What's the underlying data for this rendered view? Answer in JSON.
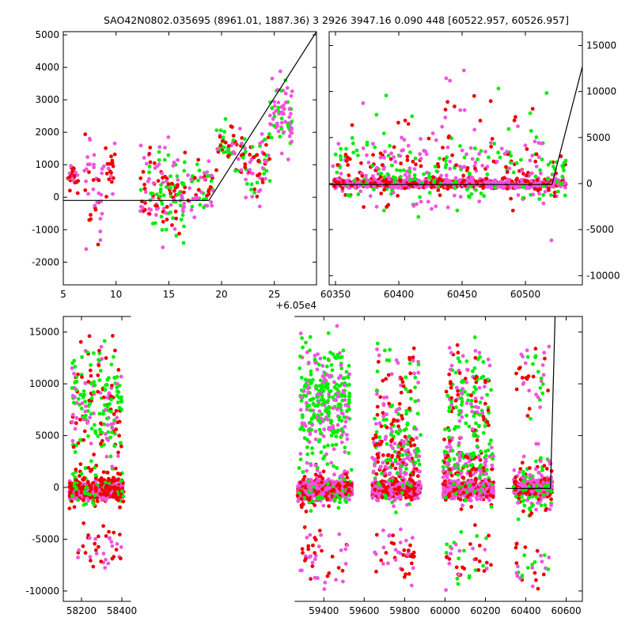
{
  "title": "SAO42N0802.035695 (8961.01, 1887.36)   3 2926 3947.16 0.090 448 [60522.957, 60526.957]",
  "colors": {
    "green": "#00ee00",
    "red": "#ee0000",
    "violet": "#ee55dd",
    "model": "#000000"
  },
  "chart_data": [
    {
      "type": "scatter",
      "panel": "top-left",
      "offset_label": "+6.05e4",
      "xlim": [
        5,
        29
      ],
      "ylim": [
        -2700,
        5100
      ],
      "xticks": [
        5,
        10,
        15,
        20,
        25
      ],
      "yticks": [
        -2000,
        -1000,
        0,
        1000,
        2000,
        3000,
        4000,
        5000
      ],
      "y_axis_side": "left",
      "model_line": {
        "x": [
          5,
          18.8,
          29
        ],
        "y": [
          -100,
          -100,
          5100
        ]
      },
      "groups": [
        {
          "xr": [
            5.3,
            6.6
          ],
          "yr": [
            -200,
            1300
          ],
          "n": 24,
          "colors": [
            "red",
            "red",
            "violet"
          ]
        },
        {
          "xr": [
            7.0,
            8.7
          ],
          "yr": [
            -2200,
            2600
          ],
          "n": 40,
          "colors": [
            "red",
            "violet",
            "violet"
          ]
        },
        {
          "xr": [
            8.8,
            9.9
          ],
          "yr": [
            -300,
            2200
          ],
          "n": 22,
          "colors": [
            "red",
            "violet"
          ]
        },
        {
          "xr": [
            12.3,
            14.3
          ],
          "yr": [
            -1800,
            2300
          ],
          "n": 60,
          "colors": [
            "green",
            "violet",
            "red"
          ]
        },
        {
          "xr": [
            14.3,
            16.6
          ],
          "yr": [
            -1900,
            2100
          ],
          "n": 85,
          "colors": [
            "green",
            "violet",
            "red"
          ]
        },
        {
          "xr": [
            16.8,
            19.2
          ],
          "yr": [
            -1000,
            1700
          ],
          "n": 55,
          "colors": [
            "red",
            "violet",
            "green"
          ]
        },
        {
          "xr": [
            19.5,
            22.0
          ],
          "yr": [
            500,
            2600
          ],
          "n": 55,
          "colors": [
            "red",
            "violet",
            "green"
          ]
        },
        {
          "xr": [
            22.0,
            24.6
          ],
          "yr": [
            -600,
            2600
          ],
          "n": 70,
          "colors": [
            "green",
            "violet",
            "red"
          ]
        },
        {
          "xr": [
            24.6,
            26.7
          ],
          "yr": [
            900,
            4100
          ],
          "n": 75,
          "colors": [
            "green",
            "violet",
            "violet"
          ]
        }
      ]
    },
    {
      "type": "scatter",
      "panel": "top-right",
      "xlim": [
        60345,
        60545
      ],
      "ylim": [
        -11000,
        16500
      ],
      "xticks": [
        60350,
        60400,
        60450,
        60500
      ],
      "yticks": [
        -10000,
        -5000,
        0,
        5000,
        10000,
        15000
      ],
      "y_axis_side": "right",
      "model_line": {
        "x": [
          60345,
          60521,
          60545
        ],
        "y": [
          -100,
          -100,
          12700
        ]
      },
      "groups": [
        {
          "xr": [
            60348,
            60532
          ],
          "yr": [
            -700,
            700
          ],
          "n": 900,
          "colors": [
            "violet",
            "violet",
            "red"
          ]
        },
        {
          "xr": [
            60348,
            60532
          ],
          "yr": [
            -4000,
            6000
          ],
          "n": 320,
          "colors": [
            "violet",
            "green",
            "red"
          ]
        },
        {
          "xr": [
            60360,
            60525
          ],
          "yr": [
            -10000,
            16000
          ],
          "n": 110,
          "colors": [
            "green",
            "violet",
            "red"
          ]
        }
      ]
    },
    {
      "type": "scatter",
      "panel": "bottom",
      "xlim": [
        58110,
        60680
      ],
      "ylim": [
        -11000,
        16500
      ],
      "xticks": [
        58200,
        58400,
        59400,
        59600,
        59800,
        60000,
        60200,
        60400,
        60600
      ],
      "yticks": [
        -10000,
        -5000,
        0,
        5000,
        10000,
        15000
      ],
      "y_axis_side": "left",
      "gap_break": [
        58445,
        59255
      ],
      "model_line": {
        "x": [
          60300,
          60522,
          60545
        ],
        "y": [
          -100,
          -100,
          16500
        ]
      },
      "groups": [
        {
          "xr": [
            58140,
            58410
          ],
          "yr": [
            -1500,
            1000
          ],
          "n": 500,
          "colors": [
            "violet",
            "violet",
            "red"
          ]
        },
        {
          "xr": [
            58140,
            58410
          ],
          "yr": [
            -3000,
            3000
          ],
          "n": 160,
          "colors": [
            "red",
            "red",
            "green"
          ]
        },
        {
          "xr": [
            58150,
            58400
          ],
          "yr": [
            0,
            16000
          ],
          "n": 220,
          "colors": [
            "green",
            "green",
            "violet",
            "red"
          ]
        },
        {
          "xr": [
            58150,
            58400
          ],
          "yr": [
            -9000,
            -2500
          ],
          "n": 40,
          "colors": [
            "red",
            "violet"
          ]
        },
        {
          "xr": [
            59270,
            59540
          ],
          "yr": [
            -1500,
            1000
          ],
          "n": 550,
          "colors": [
            "violet",
            "violet",
            "red"
          ]
        },
        {
          "xr": [
            59270,
            59540
          ],
          "yr": [
            -3000,
            3000
          ],
          "n": 150,
          "colors": [
            "red",
            "violet",
            "green"
          ]
        },
        {
          "xr": [
            59280,
            59530
          ],
          "yr": [
            0,
            16500
          ],
          "n": 330,
          "colors": [
            "green",
            "green",
            "violet"
          ]
        },
        {
          "xr": [
            59280,
            59530
          ],
          "yr": [
            -10500,
            -2500
          ],
          "n": 45,
          "colors": [
            "red",
            "violet"
          ]
        },
        {
          "xr": [
            59640,
            59880
          ],
          "yr": [
            -1500,
            1000
          ],
          "n": 480,
          "colors": [
            "violet",
            "violet",
            "red"
          ]
        },
        {
          "xr": [
            59640,
            59880
          ],
          "yr": [
            -3500,
            8000
          ],
          "n": 220,
          "colors": [
            "violet",
            "red",
            "green"
          ]
        },
        {
          "xr": [
            59650,
            59870
          ],
          "yr": [
            0,
            16500
          ],
          "n": 110,
          "colors": [
            "violet",
            "green",
            "red"
          ]
        },
        {
          "xr": [
            59650,
            59870
          ],
          "yr": [
            -10500,
            -2500
          ],
          "n": 45,
          "colors": [
            "red",
            "violet"
          ]
        },
        {
          "xr": [
            59990,
            60240
          ],
          "yr": [
            -1500,
            1000
          ],
          "n": 460,
          "colors": [
            "violet",
            "violet",
            "red"
          ]
        },
        {
          "xr": [
            59990,
            60240
          ],
          "yr": [
            -3000,
            6000
          ],
          "n": 200,
          "colors": [
            "violet",
            "red",
            "green"
          ]
        },
        {
          "xr": [
            60000,
            60230
          ],
          "yr": [
            0,
            16500
          ],
          "n": 170,
          "colors": [
            "green",
            "green",
            "violet",
            "red"
          ]
        },
        {
          "xr": [
            60000,
            60230
          ],
          "yr": [
            -10500,
            -2500
          ],
          "n": 45,
          "colors": [
            "red",
            "violet",
            "green"
          ]
        },
        {
          "xr": [
            60340,
            60530
          ],
          "yr": [
            -1500,
            1500
          ],
          "n": 300,
          "colors": [
            "violet",
            "violet",
            "red"
          ]
        },
        {
          "xr": [
            60340,
            60530
          ],
          "yr": [
            -4000,
            5000
          ],
          "n": 120,
          "colors": [
            "violet",
            "red",
            "green"
          ]
        },
        {
          "xr": [
            60350,
            60520
          ],
          "yr": [
            4000,
            16500
          ],
          "n": 40,
          "colors": [
            "violet",
            "green",
            "red"
          ]
        },
        {
          "xr": [
            60350,
            60520
          ],
          "yr": [
            -10500,
            -4000
          ],
          "n": 30,
          "colors": [
            "green",
            "violet",
            "red"
          ]
        }
      ]
    }
  ]
}
